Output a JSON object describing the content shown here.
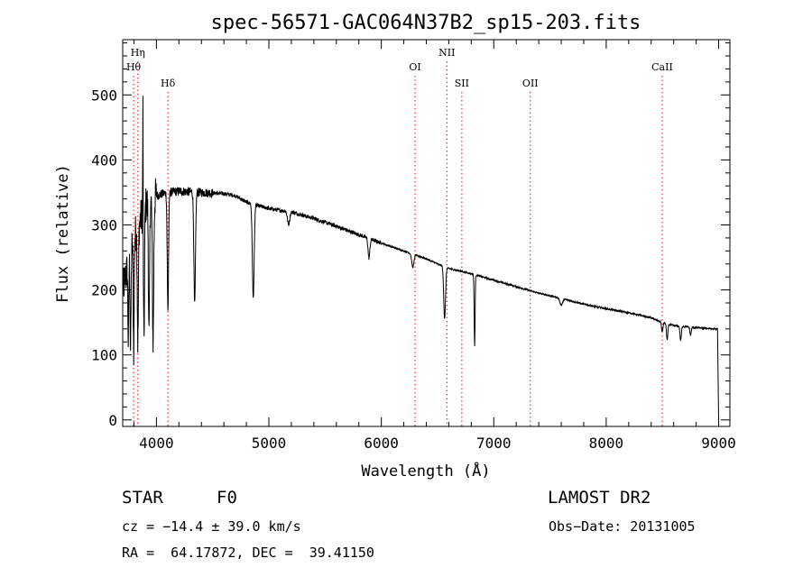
{
  "chart_data": {
    "type": "line",
    "title": "spec-56571-GAC064N37B2_sp15-203.fits",
    "xlabel": "Wavelength (Å)",
    "ylabel": "Flux (relative)",
    "xlim": [
      3700,
      9100
    ],
    "ylim": [
      -10,
      585
    ],
    "x_ticks": [
      4000,
      5000,
      6000,
      7000,
      8000,
      9000
    ],
    "y_ticks": [
      0,
      100,
      200,
      300,
      400,
      500
    ],
    "grid": false,
    "line_color": "#000000",
    "marker_color": "#ff0000",
    "continuum": [
      [
        3700,
        200
      ],
      [
        3800,
        280
      ],
      [
        3900,
        330
      ],
      [
        4000,
        345
      ],
      [
        4100,
        350
      ],
      [
        4200,
        352
      ],
      [
        4400,
        350
      ],
      [
        4600,
        348
      ],
      [
        4700,
        345
      ],
      [
        4800,
        335
      ],
      [
        4900,
        330
      ],
      [
        5000,
        325
      ],
      [
        5200,
        320
      ],
      [
        5400,
        310
      ],
      [
        5600,
        298
      ],
      [
        5800,
        285
      ],
      [
        6000,
        272
      ],
      [
        6200,
        260
      ],
      [
        6400,
        248
      ],
      [
        6500,
        240
      ],
      [
        6600,
        233
      ],
      [
        6800,
        225
      ],
      [
        7000,
        215
      ],
      [
        7200,
        205
      ],
      [
        7400,
        195
      ],
      [
        7600,
        187
      ],
      [
        7800,
        178
      ],
      [
        8000,
        171
      ],
      [
        8200,
        165
      ],
      [
        8400,
        157
      ],
      [
        8500,
        150
      ],
      [
        8600,
        145
      ],
      [
        8800,
        142
      ],
      [
        8950,
        140
      ]
    ],
    "absorption_features": [
      {
        "x": 3750,
        "depth": 120,
        "width": 4
      },
      {
        "x": 3770,
        "depth": 150,
        "width": 4
      },
      {
        "x": 3798,
        "depth": 170,
        "width": 4
      },
      {
        "x": 3835,
        "depth": 180,
        "width": 5
      },
      {
        "x": 3889,
        "depth": 200,
        "width": 5
      },
      {
        "x": 3934,
        "depth": 210,
        "width": 5
      },
      {
        "x": 3970,
        "depth": 220,
        "width": 6
      },
      {
        "x": 4102,
        "depth": 180,
        "width": 6
      },
      {
        "x": 4340,
        "depth": 175,
        "width": 7
      },
      {
        "x": 4861,
        "depth": 145,
        "width": 8
      },
      {
        "x": 5175,
        "depth": 20,
        "width": 10
      },
      {
        "x": 5890,
        "depth": 30,
        "width": 8
      },
      {
        "x": 6280,
        "depth": 20,
        "width": 10
      },
      {
        "x": 6563,
        "depth": 80,
        "width": 8
      },
      {
        "x": 6830,
        "depth": 110,
        "width": 4
      },
      {
        "x": 7600,
        "depth": 10,
        "width": 12
      },
      {
        "x": 8498,
        "depth": 15,
        "width": 6
      },
      {
        "x": 8542,
        "depth": 25,
        "width": 6
      },
      {
        "x": 8662,
        "depth": 22,
        "width": 6
      },
      {
        "x": 8750,
        "depth": 12,
        "width": 6
      }
    ],
    "emission_features": [
      {
        "x": 3880,
        "height": 200,
        "width": 2
      }
    ],
    "spectrum_end": {
      "x": 9000,
      "value": 0
    },
    "line_markers": [
      {
        "label": "Hθ",
        "x": 3797,
        "row": 3
      },
      {
        "label": "Hη",
        "x": 3835,
        "row": 1
      },
      {
        "label": "Hδ",
        "x": 4102,
        "row": 4
      },
      {
        "label": "OI",
        "x": 6300,
        "row": 3
      },
      {
        "label": "NII",
        "x": 6583,
        "row": 1
      },
      {
        "label": "SII",
        "x": 6716,
        "row": 4
      },
      {
        "label": "OII",
        "x": 7325,
        "row": 4
      },
      {
        "label": "CaII",
        "x": 8498,
        "row": 3
      }
    ]
  },
  "info": {
    "class": "STAR",
    "subclass": "F0",
    "survey": "LAMOST DR2",
    "cz": "cz = −14.4 ± 39.0 km/s",
    "obs_date": "Obs−Date: 20131005",
    "coords": "RA =  64.17872, DEC =  39.41150"
  }
}
